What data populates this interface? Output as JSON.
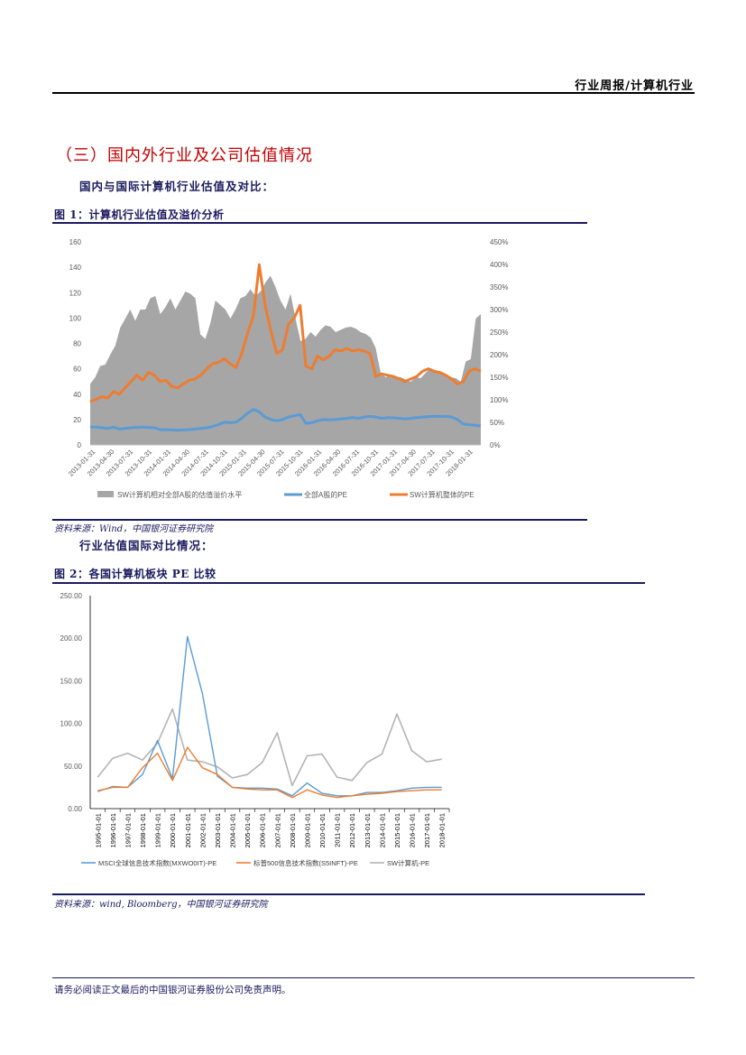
{
  "header": {
    "title": "行业周报/计算机行业"
  },
  "section_title": "（三）国内外行业及公司估值情况",
  "subtitle1": "国内与国际计算机行业估值及对比：",
  "subtitle2": "行业估值国际对比情况：",
  "figure1": {
    "caption": "图 1：计算机行业估值及溢价分析",
    "source": "资料来源：Wind，中国银河证券研究院"
  },
  "figure2": {
    "caption": "图 2：各国计算机板块 PE 比较",
    "source": "资料来源：wind, Bloomberg，中国银河证券研究院"
  },
  "footer": {
    "text": "请务必阅读正文最后的中国银河证券股份公司免责声明。"
  },
  "chart_data": [
    {
      "type": "area",
      "title": "计算机行业估值及溢价分析",
      "y_left_ticks": [
        "0",
        "20",
        "40",
        "60",
        "80",
        "100",
        "120",
        "140",
        "160"
      ],
      "y_left_range": [
        0,
        160
      ],
      "y_right_ticks": [
        "0%",
        "50%",
        "100%",
        "150%",
        "200%",
        "250%",
        "300%",
        "350%",
        "400%",
        "450%"
      ],
      "y_right_range": [
        0,
        450
      ],
      "x_ticks": [
        "2013-01-31",
        "2013-04-30",
        "2013-07-31",
        "2013-10-31",
        "2014-01-31",
        "2014-04-30",
        "2014-07-31",
        "2014-10-31",
        "2015-01-31",
        "2015-04-30",
        "2015-07-31",
        "2015-10-31",
        "2016-01-31",
        "2016-04-30",
        "2016-07-31",
        "2016-10-31",
        "2017-01-31",
        "2017-04-30",
        "2017-07-31",
        "2017-10-31",
        "2018-01-31"
      ],
      "colors": {
        "premium": "#a6a6a6",
        "all_a": "#5b9bd5",
        "sw": "#ed7d31"
      },
      "series": [
        {
          "key": "premium",
          "name": "SW计算机相对全部A股的估值溢价水平",
          "axis": "right",
          "values": [
            135,
            150,
            175,
            178,
            200,
            220,
            260,
            280,
            300,
            275,
            300,
            300,
            325,
            330,
            290,
            305,
            325,
            300,
            320,
            340,
            335,
            325,
            245,
            235,
            270,
            320,
            310,
            300,
            280,
            300,
            325,
            330,
            345,
            330,
            340,
            360,
            375,
            350,
            320,
            300,
            335,
            280,
            230,
            235,
            250,
            240,
            255,
            265,
            262,
            250,
            255,
            260,
            262,
            258,
            250,
            246,
            238,
            215,
            160,
            150,
            155,
            152,
            150,
            145,
            140,
            150,
            148,
            160,
            170,
            165,
            160,
            155,
            150,
            148,
            140,
            185,
            190,
            280,
            290
          ]
        },
        {
          "key": "all_a",
          "name": "全部A股的PE",
          "axis": "left",
          "values": [
            14,
            14,
            13.5,
            13,
            14,
            12.5,
            13,
            13.5,
            13.8,
            14,
            13.8,
            13.5,
            12,
            12,
            11.8,
            11.6,
            11.8,
            12,
            12.5,
            13,
            13.5,
            14.5,
            16,
            18,
            17.5,
            18,
            21,
            25,
            28,
            26,
            22,
            20,
            19,
            20,
            22,
            23,
            24,
            17,
            17.5,
            19,
            20,
            19.8,
            20,
            20.5,
            21,
            21.5,
            21,
            22,
            22.5,
            22,
            21,
            21.5,
            21.3,
            21,
            20.5,
            21,
            21.5,
            22,
            22.3,
            22.5,
            22.5,
            22.6,
            22,
            20,
            16.5,
            16,
            15.5,
            15
          ]
        },
        {
          "key": "sw",
          "name": "SW计算机整体的PE",
          "axis": "left",
          "values": [
            34,
            36,
            38,
            37,
            42,
            40,
            45,
            50,
            55,
            51,
            57,
            55,
            50,
            51,
            46,
            45,
            48,
            51,
            52,
            55,
            60,
            64,
            65,
            68,
            64,
            61,
            72,
            88,
            102,
            142,
            110,
            90,
            72,
            75,
            95,
            100,
            110,
            62,
            60,
            70,
            67,
            70,
            75,
            74,
            76,
            74,
            75,
            74,
            72,
            54,
            56,
            55,
            54,
            52,
            50,
            52,
            54,
            58,
            60,
            58,
            57,
            55,
            52,
            48,
            50,
            58,
            60,
            58
          ]
        }
      ]
    },
    {
      "type": "line",
      "title": "各国计算机板块 PE 比较",
      "y_ticks": [
        "0.00",
        "50.00",
        "100.00",
        "150.00",
        "200.00",
        "250.00"
      ],
      "y_range": [
        0,
        250
      ],
      "categories": [
        "1995-01-01",
        "1996-01-01",
        "1997-01-01",
        "1998-01-01",
        "1999-01-01",
        "2000-01-01",
        "2001-01-01",
        "2002-01-01",
        "2003-01-01",
        "2004-01-01",
        "2005-01-01",
        "2006-01-01",
        "2007-01-01",
        "2008-01-01",
        "2009-01-01",
        "2010-01-01",
        "2011-01-01",
        "2012-01-01",
        "2013-01-01",
        "2014-01-01",
        "2015-01-01",
        "2016-01-01",
        "2017-01-01",
        "2018-01-01"
      ],
      "colors": {
        "msci": "#5b9bd5",
        "sp500": "#ed7d31",
        "sw": "#b4b4b4"
      },
      "series": [
        {
          "key": "msci",
          "name": "MSCI全球信息技术指数(MXWO0IT)-PE",
          "values": [
            20,
            26,
            25,
            40,
            80,
            35,
            202,
            135,
            38,
            25,
            24,
            24,
            23,
            15,
            30,
            18,
            15,
            15,
            19,
            19,
            21,
            24,
            25,
            25
          ]
        },
        {
          "key": "sp500",
          "name": "标普500信息技术指数(S5INFT)-PE",
          "values": [
            21,
            25,
            25,
            48,
            65,
            33,
            72,
            48,
            40,
            25,
            23,
            22,
            22,
            13,
            22,
            16,
            13,
            15,
            17,
            18,
            20,
            21,
            22,
            22
          ]
        },
        {
          "key": "sw",
          "name": "SW计算机-PE",
          "values": [
            37,
            59,
            65,
            57,
            77,
            117,
            57,
            55,
            49,
            36,
            40,
            54,
            89,
            27,
            62,
            64,
            37,
            33,
            54,
            64,
            111,
            68,
            55,
            58
          ]
        }
      ]
    }
  ]
}
